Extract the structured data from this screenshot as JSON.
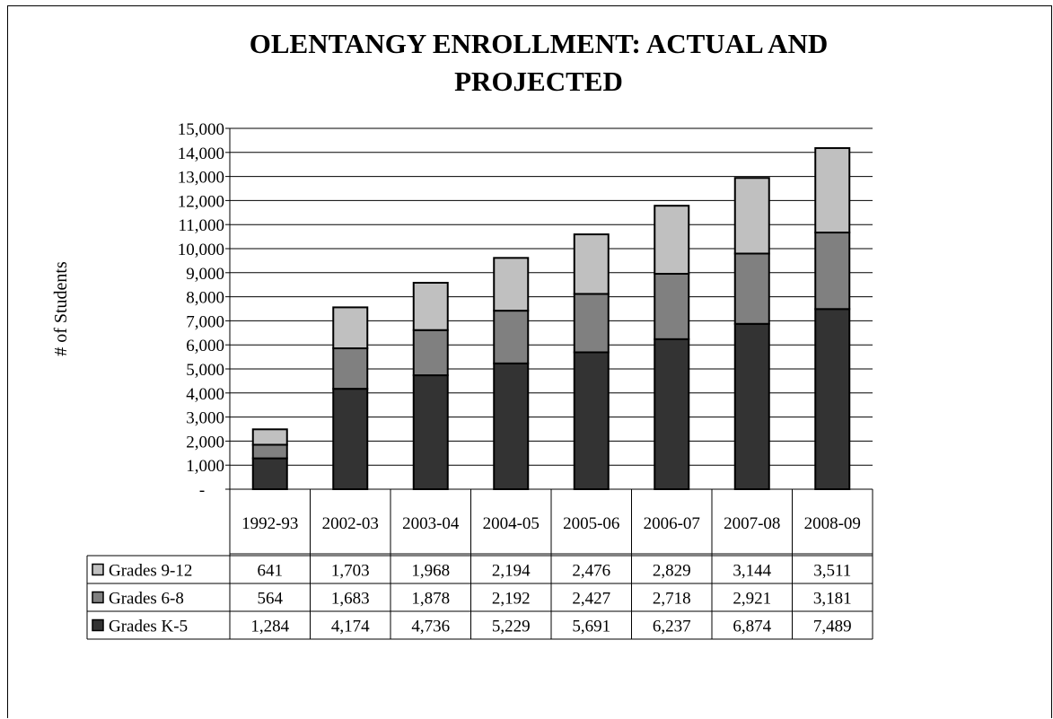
{
  "chart_data": {
    "type": "bar",
    "stacked": true,
    "title": "OLENTANGY ENROLLMENT:  ACTUAL AND PROJECTED",
    "ylabel": "# of Students",
    "xlabel": "",
    "ylim": [
      0,
      15000
    ],
    "yticks": [
      "-",
      "1,000",
      "2,000",
      "3,000",
      "4,000",
      "5,000",
      "6,000",
      "7,000",
      "8,000",
      "9,000",
      "10,000",
      "11,000",
      "12,000",
      "13,000",
      "14,000",
      "15,000"
    ],
    "grid": true,
    "legend": "data-table-left",
    "categories": [
      "1992-93",
      "2002-03",
      "2003-04",
      "2004-05",
      "2005-06",
      "2006-07",
      "2007-08",
      "2008-09"
    ],
    "series": [
      {
        "name": "Grades K-5",
        "color": "#333333",
        "values": [
          1284,
          4174,
          4736,
          5229,
          5691,
          6237,
          6874,
          7489
        ],
        "labels": [
          "1,284",
          "4,174",
          "4,736",
          "5,229",
          "5,691",
          "6,237",
          "6,874",
          "7,489"
        ]
      },
      {
        "name": "Grades 6-8",
        "color": "#808080",
        "values": [
          564,
          1683,
          1878,
          2192,
          2427,
          2718,
          2921,
          3181
        ],
        "labels": [
          "564",
          "1,683",
          "1,878",
          "2,192",
          "2,427",
          "2,718",
          "2,921",
          "3,181"
        ]
      },
      {
        "name": "Grades 9-12",
        "color": "#c0c0c0",
        "values": [
          641,
          1703,
          1968,
          2194,
          2476,
          2829,
          3144,
          3511
        ],
        "labels": [
          "641",
          "1,703",
          "1,968",
          "2,194",
          "2,476",
          "2,829",
          "3,144",
          "3,511"
        ]
      }
    ]
  }
}
